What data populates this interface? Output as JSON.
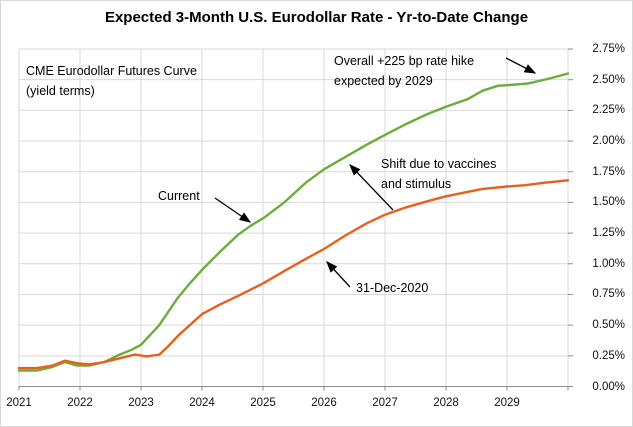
{
  "title": "Expected 3-Month U.S. Eurodollar Rate - Yr-to-Date Change",
  "colors": {
    "current_line": "#6bad3c",
    "dec2020_line": "#e8601c",
    "gridline": "#d9d9d9",
    "axis": "#8c8c8c",
    "text": "#000000"
  },
  "annotations": {
    "cme_line1": "CME Eurodollar Futures Curve",
    "cme_line2": "(yield terms)",
    "overall_line1": "Overall +225 bp rate hike",
    "overall_line2": "expected by 2029",
    "current": "Current",
    "shift_line1": "Shift due to vaccines",
    "shift_line2": "and stimulus",
    "dec2020": "31-Dec-2020"
  },
  "chart_data": {
    "type": "line",
    "title": "Expected 3-Month U.S. Eurodollar Rate - Yr-to-Date Change",
    "xlabel": "",
    "ylabel": "",
    "grid": true,
    "legend": "none (labels via annotations)",
    "x_axis": {
      "range": [
        2021,
        2030
      ],
      "tick_labels": [
        "2021",
        "2022",
        "2023",
        "2024",
        "2025",
        "2026",
        "2027",
        "2028",
        "2029"
      ]
    },
    "y_axis": {
      "position": "right",
      "range": [
        0,
        2.75
      ],
      "tick_step": 0.25,
      "tick_labels": [
        "0.00%",
        "0.25%",
        "0.50%",
        "0.75%",
        "1.00%",
        "1.25%",
        "1.50%",
        "1.75%",
        "2.00%",
        "2.25%",
        "2.50%",
        "2.75%"
      ]
    },
    "series": [
      {
        "name": "Current",
        "color": "#6bad3c",
        "points": [
          [
            2021.0,
            0.13
          ],
          [
            2021.3,
            0.13
          ],
          [
            2021.55,
            0.16
          ],
          [
            2021.75,
            0.2
          ],
          [
            2021.95,
            0.17
          ],
          [
            2022.15,
            0.17
          ],
          [
            2022.4,
            0.2
          ],
          [
            2022.65,
            0.26
          ],
          [
            2022.85,
            0.3
          ],
          [
            2023.0,
            0.34
          ],
          [
            2023.3,
            0.5
          ],
          [
            2023.6,
            0.72
          ],
          [
            2023.8,
            0.84
          ],
          [
            2024.0,
            0.95
          ],
          [
            2024.3,
            1.1
          ],
          [
            2024.6,
            1.24
          ],
          [
            2024.8,
            1.31
          ],
          [
            2025.0,
            1.37
          ],
          [
            2025.35,
            1.5
          ],
          [
            2025.7,
            1.66
          ],
          [
            2026.0,
            1.77
          ],
          [
            2026.35,
            1.87
          ],
          [
            2026.7,
            1.97
          ],
          [
            2027.0,
            2.05
          ],
          [
            2027.35,
            2.14
          ],
          [
            2027.7,
            2.22
          ],
          [
            2028.0,
            2.28
          ],
          [
            2028.35,
            2.34
          ],
          [
            2028.6,
            2.41
          ],
          [
            2028.85,
            2.45
          ],
          [
            2029.0,
            2.455
          ],
          [
            2029.35,
            2.47
          ],
          [
            2029.7,
            2.51
          ],
          [
            2030.0,
            2.55
          ]
        ]
      },
      {
        "name": "31-Dec-2020",
        "color": "#e8601c",
        "points": [
          [
            2021.0,
            0.15
          ],
          [
            2021.3,
            0.15
          ],
          [
            2021.55,
            0.17
          ],
          [
            2021.75,
            0.21
          ],
          [
            2021.95,
            0.19
          ],
          [
            2022.15,
            0.18
          ],
          [
            2022.4,
            0.2
          ],
          [
            2022.65,
            0.23
          ],
          [
            2022.9,
            0.26
          ],
          [
            2023.1,
            0.245
          ],
          [
            2023.3,
            0.26
          ],
          [
            2023.45,
            0.33
          ],
          [
            2023.6,
            0.41
          ],
          [
            2023.8,
            0.5
          ],
          [
            2024.0,
            0.59
          ],
          [
            2024.3,
            0.67
          ],
          [
            2024.6,
            0.74
          ],
          [
            2025.0,
            0.84
          ],
          [
            2025.35,
            0.94
          ],
          [
            2025.7,
            1.04
          ],
          [
            2026.0,
            1.12
          ],
          [
            2026.35,
            1.23
          ],
          [
            2026.7,
            1.33
          ],
          [
            2027.0,
            1.4
          ],
          [
            2027.35,
            1.46
          ],
          [
            2027.7,
            1.51
          ],
          [
            2028.0,
            1.55
          ],
          [
            2028.3,
            1.58
          ],
          [
            2028.6,
            1.61
          ],
          [
            2029.0,
            1.63
          ],
          [
            2029.3,
            1.64
          ],
          [
            2029.6,
            1.66
          ],
          [
            2030.0,
            1.68
          ]
        ]
      }
    ]
  }
}
